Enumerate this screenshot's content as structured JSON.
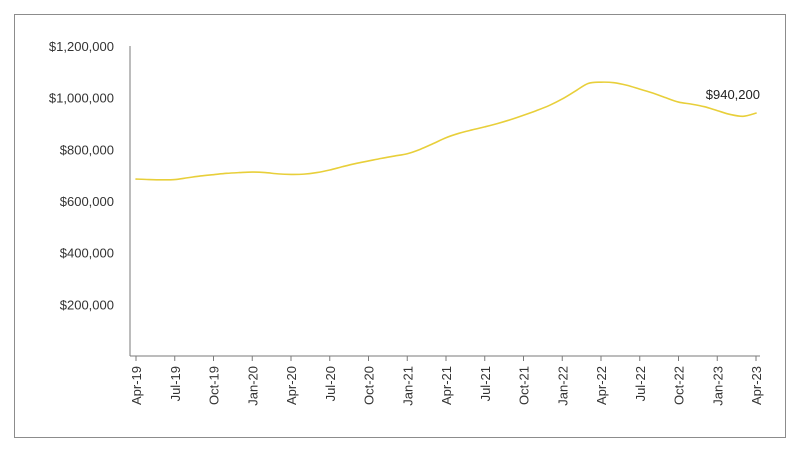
{
  "chart_data": {
    "type": "line",
    "title": "",
    "xlabel": "",
    "ylabel": "",
    "ylim": [
      0,
      1200000
    ],
    "yticks": [
      200000,
      400000,
      600000,
      800000,
      1000000,
      1200000
    ],
    "ytick_labels": [
      "$200,000",
      "$400,000",
      "$600,000",
      "$800,000",
      "$1,000,000",
      "$1,200,000"
    ],
    "xtick_labels": [
      "Apr-19",
      "Jul-19",
      "Oct-19",
      "Jan-20",
      "Apr-20",
      "Jul-20",
      "Oct-20",
      "Jan-21",
      "Apr-21",
      "Jul-21",
      "Oct-21",
      "Jan-22",
      "Apr-22",
      "Jul-22",
      "Oct-22",
      "Jan-23",
      "Apr-23"
    ],
    "grid": false,
    "legend": "none",
    "line_color": "#e8cf3a",
    "series": [
      {
        "x": [
          "Apr-19",
          "May-19",
          "Jun-19",
          "Jul-19",
          "Aug-19",
          "Sep-19",
          "Oct-19",
          "Nov-19",
          "Dec-19",
          "Jan-20",
          "Feb-20",
          "Mar-20",
          "Apr-20",
          "May-20",
          "Jun-20",
          "Jul-20",
          "Aug-20",
          "Sep-20",
          "Oct-20",
          "Nov-20",
          "Dec-20",
          "Jan-21",
          "Feb-21",
          "Mar-21",
          "Apr-21",
          "May-21",
          "Jun-21",
          "Jul-21",
          "Aug-21",
          "Sep-21",
          "Oct-21",
          "Nov-21",
          "Dec-21",
          "Jan-22",
          "Feb-22",
          "Mar-22",
          "Apr-22",
          "May-22",
          "Jun-22",
          "Jul-22",
          "Aug-22",
          "Sep-22",
          "Oct-22",
          "Nov-22",
          "Dec-22",
          "Jan-23",
          "Feb-23",
          "Mar-23",
          "Apr-23"
        ],
        "values": [
          685000,
          683000,
          682000,
          683000,
          690000,
          697000,
          702000,
          707000,
          710000,
          712000,
          710000,
          705000,
          703000,
          704000,
          710000,
          720000,
          733000,
          745000,
          755000,
          765000,
          774000,
          783000,
          800000,
          822000,
          845000,
          862000,
          875000,
          887000,
          900000,
          915000,
          932000,
          950000,
          970000,
          995000,
          1025000,
          1055000,
          1060000,
          1058000,
          1048000,
          1033000,
          1018000,
          1000000,
          983000,
          975000,
          965000,
          950000,
          935000,
          928000,
          940200
        ]
      }
    ],
    "annotations": [
      {
        "text": "$940,200",
        "at_index": 48
      }
    ]
  }
}
